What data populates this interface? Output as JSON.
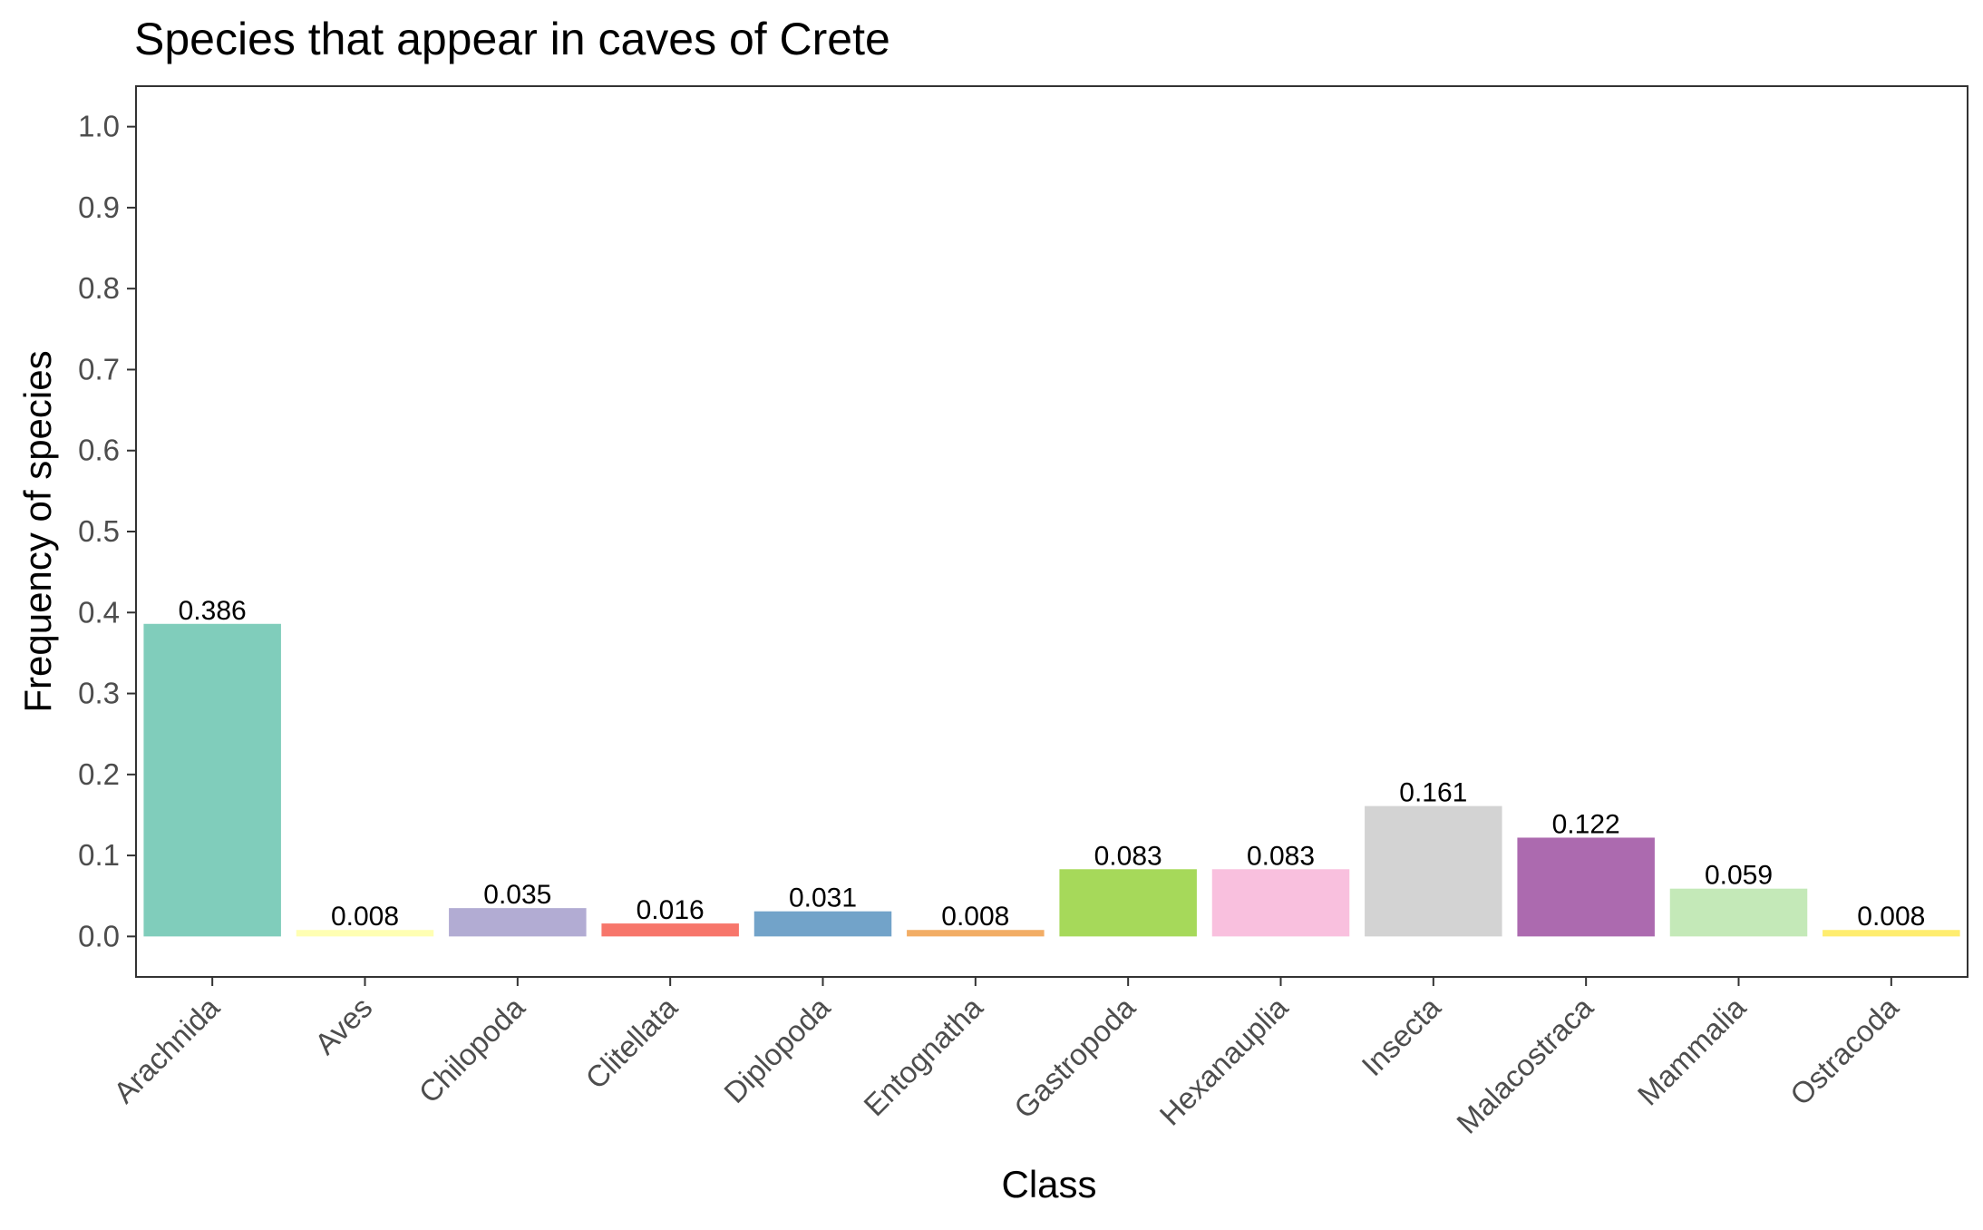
{
  "chart_data": {
    "type": "bar",
    "title": "Species that appear in caves of Crete",
    "xlabel": "Class",
    "ylabel": "Frequency of species",
    "categories": [
      "Arachnida",
      "Aves",
      "Chilopoda",
      "Clitellata",
      "Diplopoda",
      "Entognatha",
      "Gastropoda",
      "Hexanauplia",
      "Insecta",
      "Malacostraca",
      "Mammalia",
      "Ostracoda"
    ],
    "values": [
      0.386,
      0.008,
      0.035,
      0.016,
      0.031,
      0.008,
      0.083,
      0.083,
      0.161,
      0.122,
      0.059,
      0.008
    ],
    "value_labels": [
      "0.386",
      "0.008",
      "0.035",
      "0.016",
      "0.031",
      "0.008",
      "0.083",
      "0.083",
      "0.161",
      "0.122",
      "0.059",
      "0.008"
    ],
    "colors": [
      "#80cdbb",
      "#ffffb3",
      "#b2acd3",
      "#f7766b",
      "#72a3c9",
      "#f2ad65",
      "#a6d95a",
      "#f9c0de",
      "#d3d3d3",
      "#ac6aaf",
      "#c4e9b8",
      "#ffed6f"
    ],
    "y_ticks": [
      "0.0",
      "0.1",
      "0.2",
      "0.3",
      "0.4",
      "0.5",
      "0.6",
      "0.7",
      "0.8",
      "0.9",
      "1.0"
    ],
    "ylim": [
      -0.05,
      1.05
    ],
    "grid": false,
    "legend": "none"
  }
}
